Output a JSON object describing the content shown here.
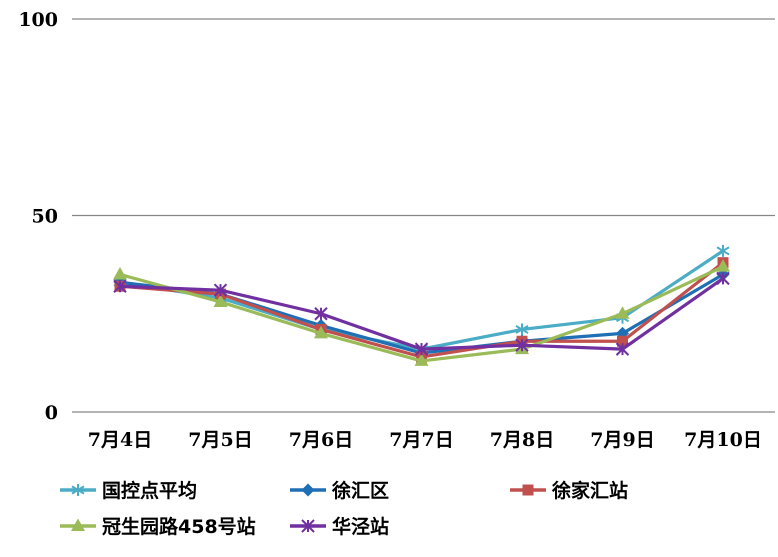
{
  "chart_data": {
    "type": "line",
    "categories": [
      "7月4日",
      "7月5日",
      "7月6日",
      "7月7日",
      "7月8日",
      "7月9日",
      "7月10日"
    ],
    "ylim": [
      0,
      100
    ],
    "yticks": [
      "0",
      "50",
      "100"
    ],
    "grid": true,
    "legend_position": "bottom",
    "series": [
      {
        "name": "国控点平均",
        "color": "#4BACC6",
        "marker": "star",
        "values": [
          33,
          29,
          21,
          16,
          21,
          24,
          41
        ]
      },
      {
        "name": "徐汇区",
        "color": "#1F6FB5",
        "marker": "diamond",
        "values": [
          33,
          30,
          22,
          15,
          18,
          20,
          35
        ]
      },
      {
        "name": "徐家汇站",
        "color": "#C0504D",
        "marker": "square",
        "values": [
          32,
          30,
          21,
          14,
          18,
          18,
          38
        ]
      },
      {
        "name": "冠生园路458号站",
        "color": "#9BBB59",
        "marker": "triangle",
        "values": [
          35,
          28,
          20,
          13,
          16,
          25,
          37
        ]
      },
      {
        "name": "华泾站",
        "color": "#7030A0",
        "marker": "asterisk",
        "values": [
          32,
          31,
          25,
          16,
          17,
          16,
          34
        ]
      }
    ]
  }
}
